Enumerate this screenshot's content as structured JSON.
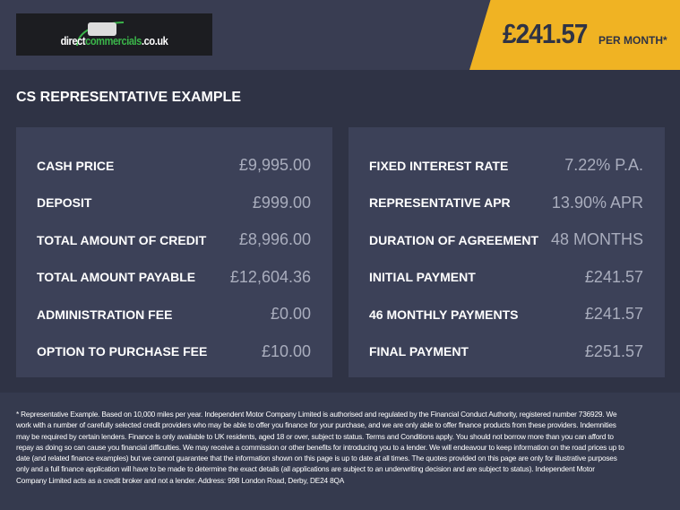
{
  "header": {
    "logo_text": "directcommercials.co.uk",
    "logo_part1": "direct",
    "logo_part2": "commercials",
    "logo_part3": ".co.uk",
    "monthly_price": "£241.57",
    "per_month_label": "PER MONTH*",
    "accent_color": "#f0b323"
  },
  "title": "CS REPRESENTATIVE EXAMPLE",
  "left_rows": [
    {
      "label": "CASH PRICE",
      "value": "£9,995.00"
    },
    {
      "label": "DEPOSIT",
      "value": "£999.00"
    },
    {
      "label": "TOTAL AMOUNT OF CREDIT",
      "value": "£8,996.00"
    },
    {
      "label": "TOTAL AMOUNT PAYABLE",
      "value": "£12,604.36"
    },
    {
      "label": "ADMINISTRATION FEE",
      "value": "£0.00"
    },
    {
      "label": "OPTION TO PURCHASE FEE",
      "value": "£10.00"
    }
  ],
  "right_rows": [
    {
      "label": "FIXED INTEREST RATE",
      "value": "7.22% P.A."
    },
    {
      "label": "REPRESENTATIVE APR",
      "value": "13.90% APR"
    },
    {
      "label": "DURATION OF AGREEMENT",
      "value": "48 MONTHS"
    },
    {
      "label": "INITIAL PAYMENT",
      "value": "£241.57"
    },
    {
      "label": "46 MONTHLY PAYMENTS",
      "value": "£241.57"
    },
    {
      "label": "FINAL PAYMENT",
      "value": "£251.57"
    }
  ],
  "disclaimer": "* Representative Example. Based on 10,000 miles per year. Independent Motor Company Limited is authorised and regulated by the Financial Conduct Authority, registered number 736929. We work with a number of carefully selected credit providers who may be able to offer you finance for your purchase, and we are only able to offer finance products from these providers. Indemnities may be required by certain lenders. Finance is only available to UK residents, aged 18 or over, subject to status. Terms and Conditions apply. You should not borrow more than you can afford to repay as doing so can cause you financial difficulties. We may receive a commission or other benefits for introducing you to a lender. We will endeavour to keep information on the road prices up to date (and related finance examples) but we cannot guarantee that the information shown on this page is up to date at all times. The quotes provided on this page are only for illustrative purposes only and a full finance application will have to be made to determine the exact details (all applications are subject to an underwriting decision and are subject to status). Independent Motor Company Limited acts as a credit broker and not a lender. Address: 998 London Road, Derby, DE24 8QA"
}
